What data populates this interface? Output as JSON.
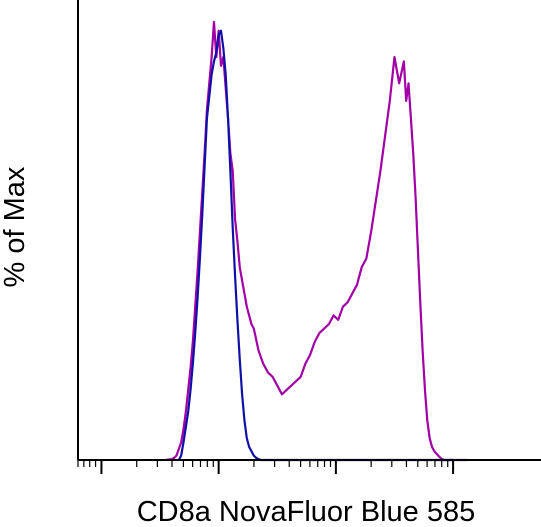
{
  "chart_data": {
    "type": "line",
    "title": "",
    "xlabel": "CD8a NovaFluor Blue 585",
    "ylabel": "% of Max",
    "x_scale": "biexponential (log-like)",
    "ylim": [
      0,
      100
    ],
    "grid": false,
    "legend": "none",
    "series": [
      {
        "color": "#a100a6",
        "x": [
          0.55,
          0.6,
          0.62,
          0.64,
          0.66,
          0.68,
          0.7,
          0.72,
          0.74,
          0.76,
          0.78,
          0.8,
          0.82,
          0.84,
          0.86,
          0.88,
          0.9,
          0.92,
          0.94,
          0.96,
          0.98,
          1.0,
          1.02,
          1.04,
          1.06,
          1.08,
          1.1,
          1.12,
          1.14,
          1.16,
          1.18,
          1.2,
          1.22,
          1.24,
          1.26,
          1.28,
          1.3,
          1.34,
          1.38,
          1.42,
          1.46,
          1.5,
          1.54,
          1.58,
          1.62,
          1.66,
          1.7,
          1.74,
          1.78,
          1.82,
          1.86,
          1.9,
          1.94,
          1.98,
          2.02,
          2.06,
          2.1,
          2.14,
          2.18,
          2.22,
          2.26,
          2.3,
          2.34,
          2.38,
          2.42,
          2.46,
          2.5,
          2.54,
          2.58,
          2.6,
          2.62,
          2.64,
          2.66,
          2.68,
          2.7,
          2.72,
          2.74,
          2.76,
          2.78,
          2.8,
          2.82,
          2.84,
          2.86,
          2.88,
          2.9,
          2.92,
          2.94,
          2.96,
          2.98,
          3.0,
          3.04,
          3.08,
          3.12
        ],
        "y": [
          0,
          0.2,
          0.5,
          1.0,
          2.5,
          4.0,
          7.0,
          11,
          16,
          21,
          27,
          35,
          43,
          52,
          61,
          70,
          80,
          86,
          92,
          100,
          92,
          98,
          90,
          92,
          85,
          78,
          70,
          66,
          55,
          50,
          44,
          41,
          38,
          35,
          33,
          31,
          30,
          25,
          22,
          20,
          19,
          17,
          15,
          16,
          17,
          18,
          19,
          22,
          24,
          27,
          29,
          30,
          31,
          33,
          32,
          35,
          36,
          38,
          40,
          44,
          46,
          52,
          59,
          66,
          74,
          82,
          92,
          86,
          91,
          82,
          86,
          78,
          70,
          60,
          48,
          36,
          25,
          16,
          9,
          5,
          3,
          2.0,
          1.4,
          0.8,
          0.3,
          0,
          0,
          0,
          0,
          0,
          0,
          0,
          0
        ]
      },
      {
        "color": "#0f10a7",
        "x": [
          0.66,
          0.68,
          0.7,
          0.72,
          0.74,
          0.76,
          0.78,
          0.8,
          0.82,
          0.84,
          0.86,
          0.88,
          0.9,
          0.92,
          0.94,
          0.96,
          0.98,
          1.0,
          1.02,
          1.04,
          1.06,
          1.08,
          1.1,
          1.12,
          1.14,
          1.16,
          1.18,
          1.2,
          1.22,
          1.24,
          1.26,
          1.28,
          1.3,
          1.32,
          1.34,
          1.36,
          1.4,
          1.5,
          1.6,
          1.8,
          2.0,
          2.5,
          3.0
        ],
        "y": [
          0,
          1.0,
          4.0,
          7.5,
          11,
          16,
          22,
          29,
          37,
          46,
          56,
          67,
          78,
          83,
          88,
          91,
          93,
          97,
          98,
          94,
          88,
          78,
          66,
          53,
          42,
          32,
          23,
          15,
          9,
          5,
          3,
          2.0,
          1.0,
          0.5,
          0.2,
          0,
          0,
          0,
          0,
          0,
          0,
          0,
          0
        ]
      }
    ],
    "x_ticks": {
      "major": [
        0.0,
        1.0,
        2.0,
        3.0
      ],
      "note": "unlabeled log-decade major ticks with minor ticks between them"
    },
    "y_ticks": "none"
  }
}
